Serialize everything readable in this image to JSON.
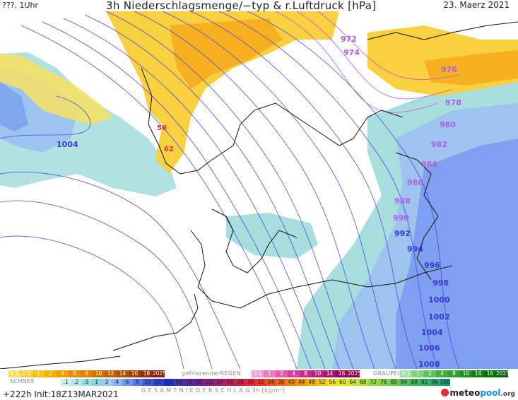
{
  "header": {
    "left": "???, 1Uhr",
    "title": "3h Niederschlagsmenge/−typ & r.Luftdruck [hPa]",
    "date": "23. Maerz 2021"
  },
  "isobars": {
    "left_low": "1004",
    "red_56": "56",
    "red_62": "62",
    "east_labels": [
      "972",
      "974",
      "976",
      "978",
      "980",
      "982",
      "984",
      "986",
      "988",
      "990",
      "992",
      "994",
      "996",
      "998",
      "1000",
      "1002",
      "1004",
      "1006",
      "1008"
    ]
  },
  "legend": {
    "snow_label": "SCHNEE",
    "rain_label": "gefrierenderREGEN",
    "graupel_label": "GRAUPEL",
    "total_label": "G E S A M T N I E D E R S C H L A G   3h   [kg/m²]",
    "snow_scale": [
      "0.1",
      "0.5",
      "1",
      "2",
      "4",
      "6",
      "8",
      "10",
      "12",
      "14",
      "16",
      "18",
      "2025+"
    ],
    "frz_scale": [
      "0.1",
      "1",
      "2",
      "4",
      "8",
      "10",
      "14",
      "16",
      "2025+"
    ],
    "graupel_scale": [
      "0.1",
      "1",
      "2",
      "4",
      "8",
      "10",
      "14",
      "16",
      "2025+"
    ],
    "total_scale": [
      ".1",
      ".2",
      ".5",
      "1",
      "2",
      "4",
      "6",
      "8",
      "10",
      "12",
      "14",
      "16",
      "18",
      "20",
      "22",
      "24",
      "26",
      "28",
      "30",
      "32",
      "34",
      "36",
      "40",
      "44",
      "48",
      "52",
      "56",
      "60",
      "64",
      "68",
      "72",
      "76",
      "80",
      "84",
      "88",
      "92",
      "96",
      "100"
    ],
    "colors": {
      "snow": [
        "#f8e060",
        "#f8d040",
        "#f8c020",
        "#f8b000",
        "#f0a000",
        "#e89000",
        "#e08000",
        "#d07000",
        "#c06000",
        "#b05000",
        "#a04000",
        "#903000",
        "#802000"
      ],
      "frz": [
        "#f0a0d0",
        "#e880c0",
        "#e060b0",
        "#d840a0",
        "#c83090",
        "#b82080",
        "#a81070",
        "#980060",
        "#880050"
      ],
      "graupel": [
        "#a0e0a0",
        "#80d080",
        "#60c060",
        "#40b040",
        "#30a030",
        "#209020",
        "#108010",
        "#007000",
        "#006000"
      ],
      "total": [
        "#c8f0f0",
        "#b0e8e8",
        "#98e0e0",
        "#80d8d8",
        "#a0c8f0",
        "#88b8f0",
        "#7098f0",
        "#5878e8",
        "#4058e0",
        "#3040d0",
        "#2030c0",
        "#4030b0",
        "#5828a0",
        "#702090",
        "#882080",
        "#a02070",
        "#b82060",
        "#d02050",
        "#e02840",
        "#e83830",
        "#f05020",
        "#f06818",
        "#f08010",
        "#f09810",
        "#f0b010",
        "#f0c818",
        "#f0e020",
        "#e0e828",
        "#c8e830",
        "#b0e038",
        "#98d840",
        "#80d048",
        "#68c850",
        "#50c058",
        "#40b860",
        "#30b068",
        "#28a870",
        "#209878"
      ]
    }
  },
  "footer": {
    "run": "+222h  Init:18Z13MAR2021",
    "logo_a": "meteo",
    "logo_b": "pool",
    "logo_c": ".org"
  }
}
